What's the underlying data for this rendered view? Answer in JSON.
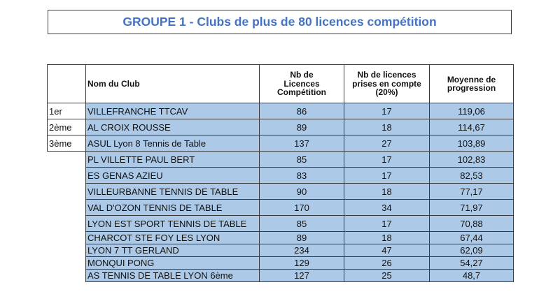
{
  "title": "GROUPE 1 - Clubs de plus de 80 licences compétition",
  "colors": {
    "accent_blue": "#4472c4",
    "row_fill": "#accae8",
    "border": "#3c3c3c"
  },
  "table": {
    "headers": {
      "rank": "",
      "club": "Nom du Club",
      "licences": "Nb de\nLicences\nCompétition",
      "compte": "Nb de licences\nprises en compte\n(20%)",
      "moyenne": "Moyenne de\nprogression"
    },
    "rows": [
      {
        "rank": "1er",
        "club": "VILLEFRANCHE TTCAV",
        "lic": "86",
        "compte": "17",
        "moyenne": "119,06"
      },
      {
        "rank": "2ème",
        "club": "AL CROIX ROUSSE",
        "lic": "89",
        "compte": "18",
        "moyenne": "114,67"
      },
      {
        "rank": "3ème",
        "club": "ASUL Lyon 8 Tennis de Table",
        "lic": "137",
        "compte": "27",
        "moyenne": "103,89"
      },
      {
        "rank": "",
        "club": "PL VILLETTE PAUL BERT",
        "lic": "85",
        "compte": "17",
        "moyenne": "102,83"
      },
      {
        "rank": "",
        "club": "ES GENAS AZIEU",
        "lic": "83",
        "compte": "17",
        "moyenne": "82,53"
      },
      {
        "rank": "",
        "club": "VILLEURBANNE TENNIS DE TABLE",
        "lic": "90",
        "compte": "18",
        "moyenne": "77,17"
      },
      {
        "rank": "",
        "club": "VAL D'OZON TENNIS DE TABLE",
        "lic": "170",
        "compte": "34",
        "moyenne": "71,97"
      },
      {
        "rank": "",
        "club": "LYON EST SPORT TENNIS DE TABLE",
        "lic": "85",
        "compte": "17",
        "moyenne": "70,88"
      },
      {
        "rank": "",
        "club": "CHARCOT STE FOY LES LYON",
        "lic": "89",
        "compte": "18",
        "moyenne": "67,44"
      },
      {
        "rank": "",
        "club": "LYON 7 TT GERLAND",
        "lic": "234",
        "compte": "47",
        "moyenne": "62,09"
      },
      {
        "rank": "",
        "club": "MONQUI PONG",
        "lic": "129",
        "compte": "26",
        "moyenne": "54,27"
      },
      {
        "rank": "",
        "club": "AS TENNIS DE TABLE LYON 6ème",
        "lic": "127",
        "compte": "25",
        "moyenne": "48,7"
      }
    ]
  }
}
